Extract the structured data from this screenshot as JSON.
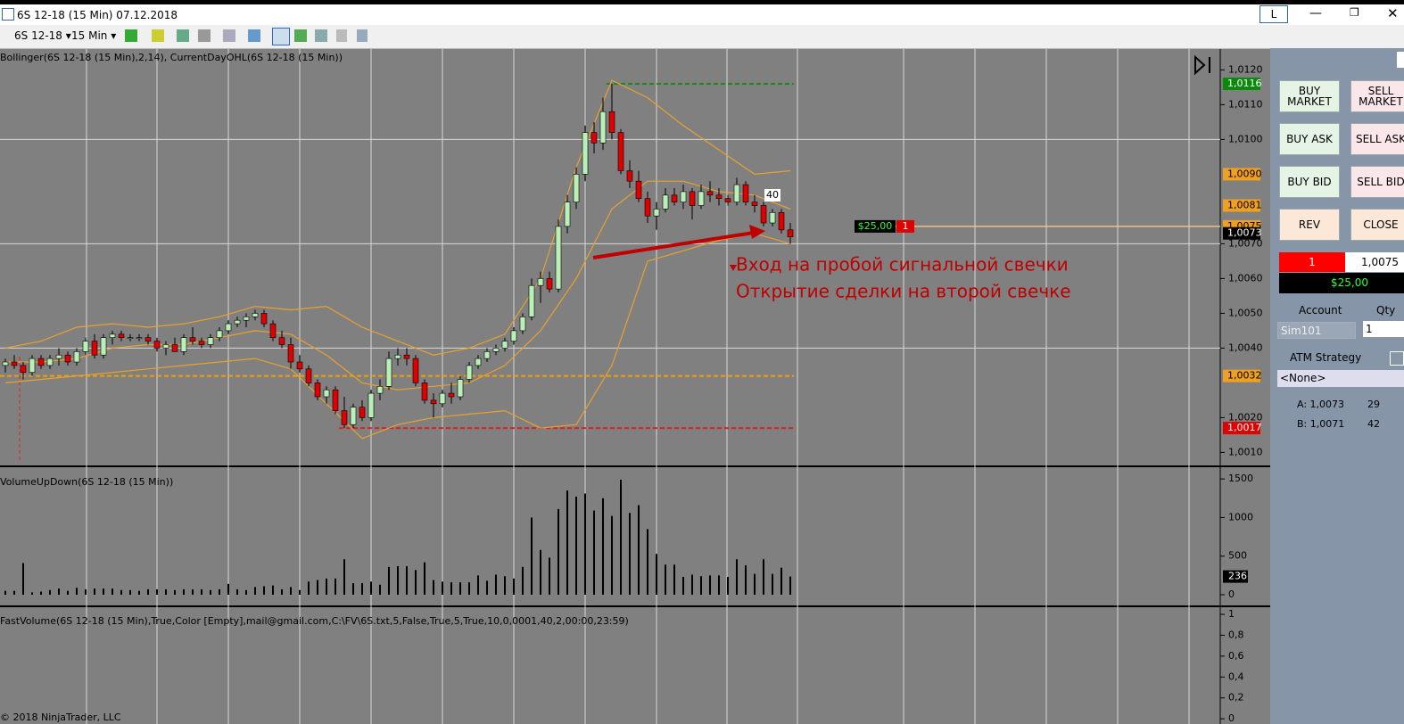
{
  "window": {
    "title": "6S 12-18 (15 Min)  07.12.2018",
    "layout_button": "L"
  },
  "toolbar": {
    "instrument": "6S 12-18",
    "interval": "15 Min"
  },
  "price_panel": {
    "indicator_label": "Bollinger(6S 12-18 (15 Min),2,14), CurrentDayOHL(6S 12-18 (15 Min))",
    "ylim": [
      1.0006,
      1.0126
    ],
    "yticks": [
      {
        "value": 1.012,
        "label": "1,0120"
      },
      {
        "value": 1.011,
        "label": "1,0110"
      },
      {
        "value": 1.01,
        "label": "1,0100"
      },
      {
        "value": 1.007,
        "label": "1,0070"
      },
      {
        "value": 1.006,
        "label": "1,0060"
      },
      {
        "value": 1.005,
        "label": "1,0050"
      },
      {
        "value": 1.004,
        "label": "1,0040"
      },
      {
        "value": 1.002,
        "label": "1,0020"
      },
      {
        "value": 1.001,
        "label": "1,0010"
      }
    ],
    "grid_lines": [
      1.01,
      1.007,
      1.004
    ],
    "up_color": "#b8f0b8",
    "down_color": "#e00000",
    "candles": {
      "open": [
        1.0035,
        1.0036,
        1.0035,
        1.0033,
        1.0037,
        1.0035,
        1.0037,
        1.0038,
        1.0036,
        1.0039,
        1.0042,
        1.0038,
        1.0043,
        1.0044,
        1.0043,
        1.0043,
        1.0043,
        1.0042,
        1.004,
        1.0041,
        1.0039,
        1.0043,
        1.0042,
        1.0041,
        1.0043,
        1.0045,
        1.0047,
        1.0048,
        1.0049,
        1.005,
        1.0047,
        1.0043,
        1.0041,
        1.0036,
        1.0034,
        1.003,
        1.0026,
        1.0028,
        1.0022,
        1.0018,
        1.0023,
        1.002,
        1.0027,
        1.0029,
        1.0037,
        1.0038,
        1.0037,
        1.003,
        1.0025,
        1.0024,
        1.0027,
        1.0026,
        1.0031,
        1.0035,
        1.0037,
        1.0039,
        1.004,
        1.0042,
        1.0045,
        1.0049,
        1.0058,
        1.006,
        1.0057,
        1.0075,
        1.0082,
        1.009,
        1.0102,
        1.0099,
        1.0108,
        1.0102,
        1.0091,
        1.0088,
        1.0083,
        1.0078,
        1.008,
        1.0084,
        1.0082,
        1.0085,
        1.0081,
        1.0085,
        1.0084,
        1.0083,
        1.0082,
        1.0087,
        1.0082,
        1.0081,
        1.0076,
        1.0079,
        1.0074
      ],
      "high": [
        1.0037,
        1.0038,
        1.0036,
        1.0038,
        1.0038,
        1.0038,
        1.004,
        1.0039,
        1.004,
        1.0043,
        1.0044,
        1.0044,
        1.0045,
        1.0045,
        1.0044,
        1.0044,
        1.0044,
        1.0043,
        1.0042,
        1.0043,
        1.0044,
        1.0046,
        1.0043,
        1.0044,
        1.0046,
        1.0048,
        1.0049,
        1.005,
        1.0051,
        1.0051,
        1.0048,
        1.0045,
        1.0043,
        1.0038,
        1.0035,
        1.0031,
        1.0029,
        1.0029,
        1.0026,
        1.0024,
        1.0025,
        1.0028,
        1.0031,
        1.0039,
        1.004,
        1.004,
        1.0038,
        1.0031,
        1.0027,
        1.0028,
        1.003,
        1.0032,
        1.0036,
        1.0038,
        1.004,
        1.0041,
        1.0043,
        1.0046,
        1.005,
        1.006,
        1.0062,
        1.0062,
        1.0077,
        1.0084,
        1.0092,
        1.0104,
        1.0105,
        1.0112,
        1.0116,
        1.0103,
        1.0094,
        1.0091,
        1.0085,
        1.0082,
        1.0086,
        1.0086,
        1.0087,
        1.0086,
        1.0087,
        1.0088,
        1.0086,
        1.0084,
        1.0089,
        1.0088,
        1.0084,
        1.0082,
        1.008,
        1.008,
        1.0076
      ],
      "low": [
        1.0033,
        1.0034,
        1.0031,
        1.0032,
        1.0034,
        1.0034,
        1.0035,
        1.0035,
        1.0035,
        1.0038,
        1.0037,
        1.0037,
        1.0041,
        1.0042,
        1.0042,
        1.0042,
        1.0041,
        1.0039,
        1.0038,
        1.0039,
        1.0038,
        1.0041,
        1.004,
        1.004,
        1.0042,
        1.0044,
        1.0046,
        1.0046,
        1.0048,
        1.0046,
        1.0042,
        1.004,
        1.0034,
        1.0033,
        1.0029,
        1.0025,
        1.0024,
        1.0021,
        1.0017,
        1.0017,
        1.0019,
        1.0019,
        1.0025,
        1.0028,
        1.0035,
        1.0035,
        1.0029,
        1.0024,
        1.002,
        1.0023,
        1.0024,
        1.0025,
        1.003,
        1.0034,
        1.0036,
        1.0038,
        1.0039,
        1.0041,
        1.0044,
        1.0048,
        1.0053,
        1.0056,
        1.0056,
        1.0073,
        1.008,
        1.0088,
        1.0096,
        1.0097,
        1.01,
        1.009,
        1.0086,
        1.0082,
        1.0076,
        1.0074,
        1.0079,
        1.0081,
        1.008,
        1.0077,
        1.008,
        1.0082,
        1.0081,
        1.0081,
        1.0081,
        1.0081,
        1.0079,
        1.0075,
        1.0075,
        1.0073,
        1.007
      ],
      "close": [
        1.0036,
        1.0035,
        1.0033,
        1.0037,
        1.0035,
        1.0037,
        1.0038,
        1.0036,
        1.0039,
        1.0042,
        1.0038,
        1.0043,
        1.0044,
        1.0043,
        1.0043,
        1.0043,
        1.0042,
        1.004,
        1.0041,
        1.0039,
        1.0043,
        1.0042,
        1.0041,
        1.0043,
        1.0045,
        1.0047,
        1.0048,
        1.0049,
        1.005,
        1.0047,
        1.0043,
        1.0041,
        1.0036,
        1.0034,
        1.003,
        1.0026,
        1.0028,
        1.0022,
        1.0018,
        1.0023,
        1.002,
        1.0027,
        1.0029,
        1.0037,
        1.0038,
        1.0037,
        1.003,
        1.0025,
        1.0024,
        1.0027,
        1.0026,
        1.0031,
        1.0035,
        1.0037,
        1.0039,
        1.004,
        1.0042,
        1.0045,
        1.0049,
        1.0058,
        1.006,
        1.0057,
        1.0075,
        1.0082,
        1.009,
        1.0102,
        1.0099,
        1.0108,
        1.0102,
        1.0091,
        1.0088,
        1.0083,
        1.0078,
        1.008,
        1.0084,
        1.0082,
        1.0085,
        1.0081,
        1.0085,
        1.0084,
        1.0083,
        1.0082,
        1.0087,
        1.0082,
        1.0081,
        1.0076,
        1.0079,
        1.0074,
        1.0072
      ]
    },
    "bollinger": {
      "color": "#e8a030",
      "index": [
        0,
        4,
        8,
        12,
        16,
        20,
        24,
        28,
        32,
        36,
        40,
        44,
        48,
        52,
        56,
        60,
        64,
        68,
        72,
        76,
        80,
        84,
        88
      ],
      "upper": [
        1.004,
        1.0042,
        1.0046,
        1.0047,
        1.0046,
        1.0047,
        1.0049,
        1.0052,
        1.0051,
        1.0052,
        1.0046,
        1.0042,
        1.0038,
        1.004,
        1.0044,
        1.006,
        1.0092,
        1.0117,
        1.0112,
        1.0104,
        1.0097,
        1.009,
        1.0091
      ],
      "middle": [
        1.0036,
        1.0036,
        1.0037,
        1.004,
        1.0041,
        1.0041,
        1.0043,
        1.0045,
        1.0044,
        1.0038,
        1.003,
        1.0028,
        1.0029,
        1.003,
        1.0035,
        1.0045,
        1.006,
        1.008,
        1.0088,
        1.0088,
        1.0085,
        1.0084,
        1.008
      ],
      "lower": [
        1.003,
        1.0031,
        1.0032,
        1.0033,
        1.0034,
        1.0035,
        1.0036,
        1.0037,
        1.0034,
        1.0024,
        1.0014,
        1.0018,
        1.002,
        1.0021,
        1.0022,
        1.0017,
        1.0018,
        1.0035,
        1.0065,
        1.0068,
        1.0071,
        1.0073,
        1.007
      ]
    },
    "ohl": {
      "high": 1.0116,
      "low": 1.0017,
      "open": 1.0032,
      "high_color": "#1a8a1a",
      "low_color": "#e02020",
      "open_color": "#f0a000"
    },
    "price_markers": [
      {
        "value": 1.0116,
        "label": "1,0116",
        "color": "#0a8a0a",
        "text_color": "#ffffff"
      },
      {
        "value": 1.009,
        "label": "1,0090",
        "color": "#f0a020",
        "text_color": "#000000"
      },
      {
        "value": 1.0081,
        "label": "1,0081",
        "color": "#f0a020",
        "text_color": "#000000"
      },
      {
        "value": 1.0075,
        "label": "1,0075",
        "color": "#f0a020",
        "text_color": "#000000"
      },
      {
        "value": 1.0073,
        "label": "1,0073",
        "color": "#000000",
        "text_color": "#ffffff"
      },
      {
        "value": 1.0032,
        "label": "1,0032",
        "color": "#f0a020",
        "text_color": "#000000"
      },
      {
        "value": 1.0017,
        "label": "1,0017",
        "color": "#e00000",
        "text_color": "#ffffff"
      }
    ],
    "position": {
      "price": 1.0075,
      "pnl": "$25,00",
      "qty": "1"
    },
    "annotation": {
      "lines": [
        "Вход на пробой сигнальной свечки",
        "Открытие сделки на второй свечке"
      ],
      "count_label": "40"
    }
  },
  "volume_panel": {
    "indicator_label": "VolumeUpDown(6S 12-18 (15 Min))",
    "ylim": [
      -150,
      1640
    ],
    "yticks": [
      0,
      500,
      1000,
      1500
    ],
    "last": 236,
    "values": [
      50,
      50,
      410,
      30,
      40,
      60,
      80,
      50,
      90,
      70,
      80,
      80,
      80,
      60,
      60,
      50,
      70,
      70,
      70,
      60,
      70,
      70,
      70,
      60,
      70,
      140,
      70,
      60,
      100,
      110,
      120,
      70,
      100,
      60,
      170,
      190,
      210,
      210,
      460,
      150,
      150,
      170,
      130,
      360,
      370,
      370,
      320,
      420,
      190,
      170,
      160,
      160,
      160,
      250,
      180,
      260,
      240,
      210,
      360,
      1000,
      580,
      480,
      1110,
      1350,
      1270,
      1310,
      1090,
      1250,
      1020,
      1490,
      1060,
      1160,
      850,
      530,
      390,
      390,
      230,
      260,
      240,
      250,
      250,
      230,
      460,
      380,
      270,
      460,
      270,
      350,
      236
    ]
  },
  "fast_volume_panel": {
    "indicator_label": "FastVolume(6S 12-18 (15 Min),True,Color [Empty],mail@gmail.com,C:\\FV\\6S.txt,5,False,True,5,True,10,0,0001,40,2,00:00,23:59)",
    "ylim": [
      -0.05,
      1.06
    ],
    "yticks": [
      1,
      {
        "value": 0.8,
        "label": "0,8"
      },
      {
        "value": 0.6,
        "label": "0,6"
      },
      {
        "value": 0.4,
        "label": "0,4"
      },
      {
        "value": 0.2,
        "label": "0,2"
      },
      0
    ]
  },
  "footer": "© 2018 NinjaTrader, LLC",
  "order_panel": {
    "buttons": [
      [
        "BUY MARKET",
        "SELL MARKET"
      ],
      [
        "BUY ASK",
        "SELL ASK"
      ],
      [
        "BUY BID",
        "SELL BID"
      ],
      [
        "REV",
        "CLOSE"
      ]
    ],
    "position_qty": "1",
    "position_price": "1,0075",
    "pnl": "$25,00",
    "account_label": "Account",
    "qty_label": "Qty",
    "account": "Sim101",
    "qty": "1",
    "atm_label": "ATM Strategy",
    "atm": "<None>",
    "ask": "A: 1,0073",
    "ask_size": "29",
    "bid": "B: 1,0071",
    "bid_size": "42"
  }
}
